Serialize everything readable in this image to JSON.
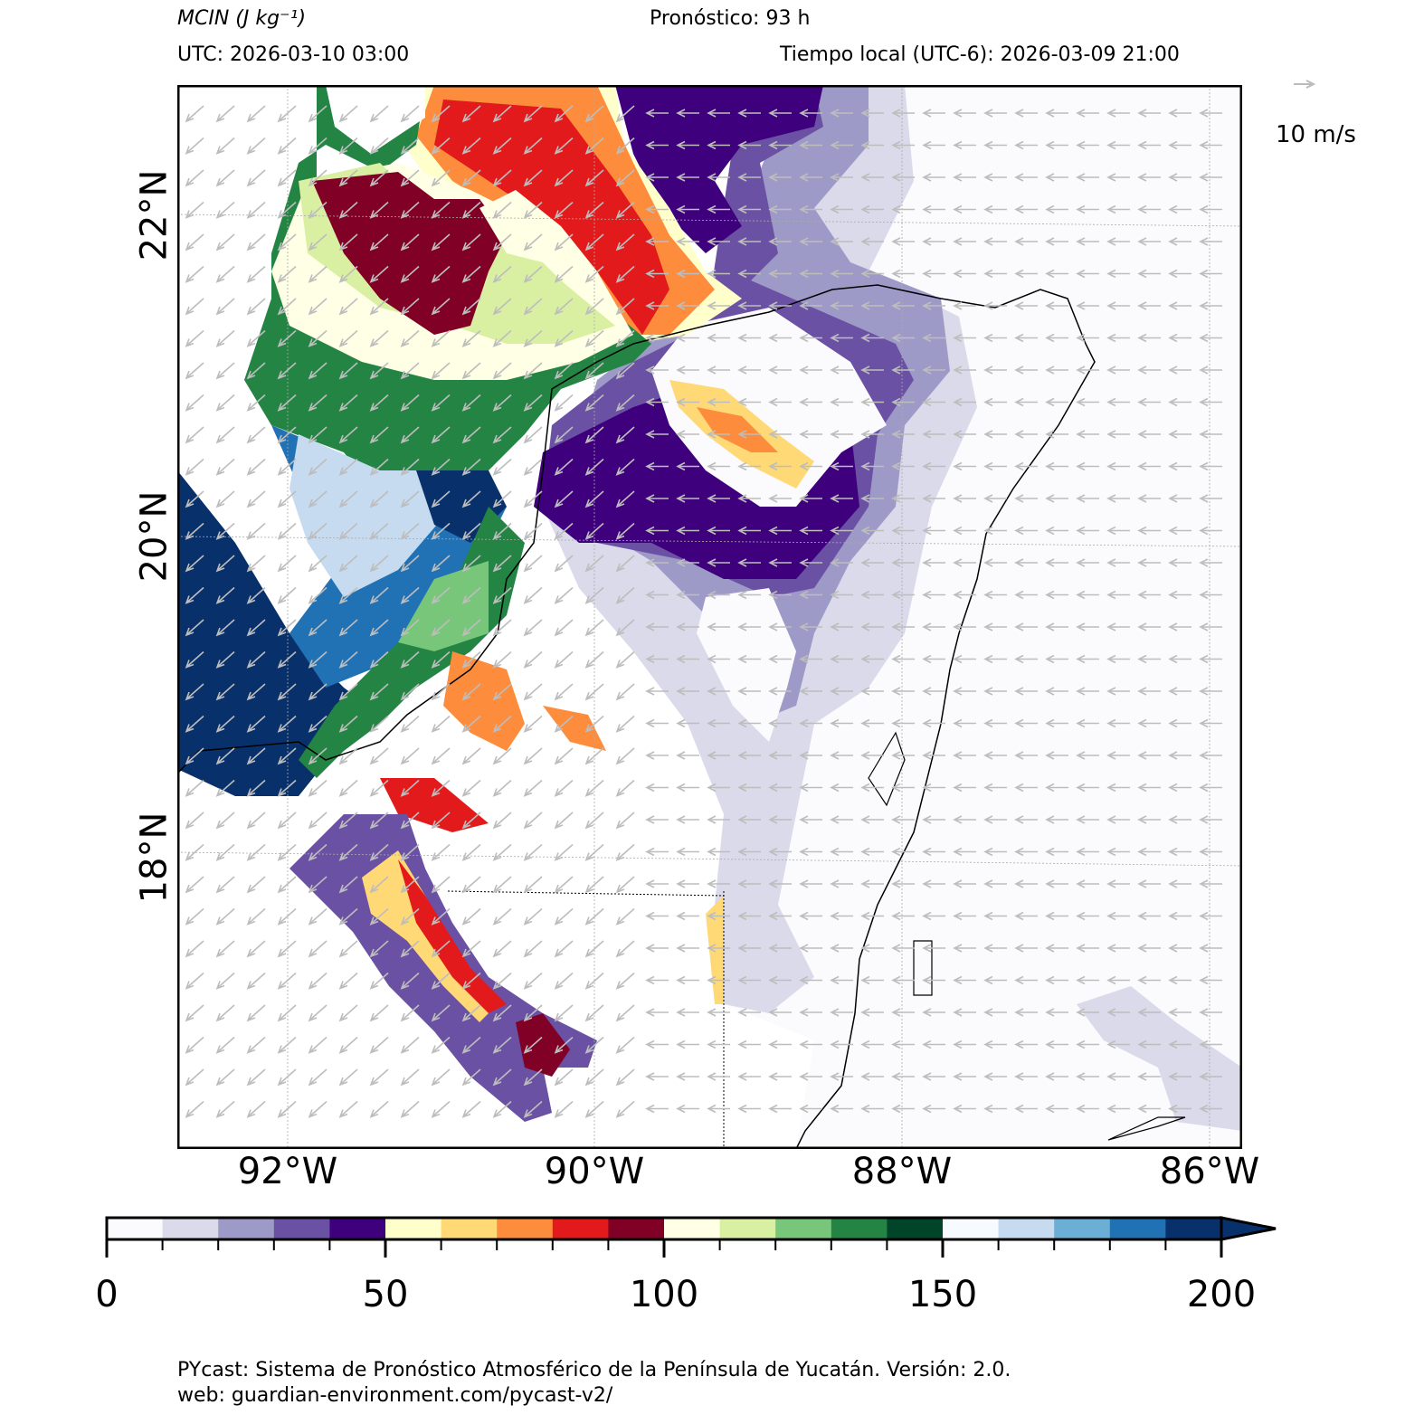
{
  "header": {
    "variable": "MCIN (J kg⁻¹)",
    "forecast": "Pronóstico: 93 h",
    "utc": "UTC:  2026-03-10 03:00",
    "local": "Tiempo local (UTC-6): 2026-03-09 21:00"
  },
  "map": {
    "lat_labels": [
      "22°N",
      "20°N",
      "18°N"
    ],
    "lon_labels": [
      "92°W",
      "90°W",
      "88°W",
      "86°W"
    ],
    "wind_key_label": "10 m/s"
  },
  "colorbar": {
    "ticks": [
      "0",
      "50",
      "100",
      "150",
      "200"
    ],
    "colors": [
      "#fbfbfd",
      "#dadaeb",
      "#9e9ac8",
      "#6a51a3",
      "#3f007d",
      "#ffffcc",
      "#fed976",
      "#fd8d3c",
      "#e31a1c",
      "#800026",
      "#ffffe5",
      "#d9f0a3",
      "#78c679",
      "#238443",
      "#004529",
      "#f7fbff",
      "#c6dbef",
      "#6baed6",
      "#2171b5",
      "#08306b"
    ],
    "extend": "max"
  },
  "footer": {
    "line1": "PYcast: Sistema de Pronóstico Atmosférico de la Península de Yucatán. Versión: 2.0.",
    "line2": "web: guardian-environment.com/pycast-v2/"
  }
}
